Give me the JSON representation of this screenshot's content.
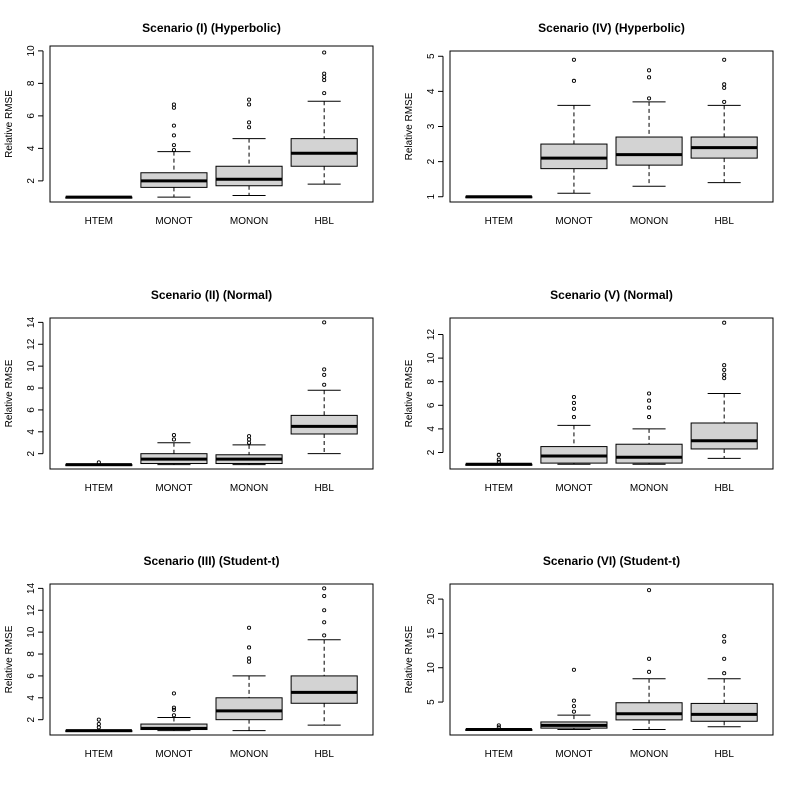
{
  "chart_data": [
    {
      "type": "boxplot",
      "title": "Scenario (I) (Hyperbolic)",
      "ylabel": "Relative RMSE",
      "categories": [
        "HTEM",
        "MONOT",
        "MONON",
        "HBL"
      ],
      "ylim": [
        0.7,
        10.3
      ],
      "yticks": [
        2,
        4,
        6,
        8,
        10
      ],
      "boxes": [
        {
          "min": 1.0,
          "q1": 1.0,
          "median": 1.0,
          "q3": 1.0,
          "max": 1.0,
          "outliers": []
        },
        {
          "min": 1.0,
          "q1": 1.6,
          "median": 2.0,
          "q3": 2.5,
          "max": 3.8,
          "outliers": [
            3.9,
            4.2,
            4.8,
            5.4,
            6.5,
            6.7
          ]
        },
        {
          "min": 1.1,
          "q1": 1.7,
          "median": 2.1,
          "q3": 2.9,
          "max": 4.6,
          "outliers": [
            5.3,
            5.6,
            6.7,
            7.0
          ]
        },
        {
          "min": 1.8,
          "q1": 2.9,
          "median": 3.7,
          "q3": 4.6,
          "max": 6.9,
          "outliers": [
            7.4,
            8.2,
            8.4,
            8.6,
            9.9
          ]
        }
      ]
    },
    {
      "type": "boxplot",
      "title": "Scenario (IV) (Hyperbolic)",
      "ylabel": "Relative RMSE",
      "categories": [
        "HTEM",
        "MONOT",
        "MONON",
        "HBL"
      ],
      "ylim": [
        0.85,
        5.15
      ],
      "yticks": [
        1,
        2,
        3,
        4,
        5
      ],
      "boxes": [
        {
          "min": 1.0,
          "q1": 1.0,
          "median": 1.0,
          "q3": 1.0,
          "max": 1.0,
          "outliers": []
        },
        {
          "min": 1.1,
          "q1": 1.8,
          "median": 2.1,
          "q3": 2.5,
          "max": 3.6,
          "outliers": [
            4.3,
            4.9
          ]
        },
        {
          "min": 1.3,
          "q1": 1.9,
          "median": 2.2,
          "q3": 2.7,
          "max": 3.7,
          "outliers": [
            3.8,
            4.4,
            4.6
          ]
        },
        {
          "min": 1.4,
          "q1": 2.1,
          "median": 2.4,
          "q3": 2.7,
          "max": 3.6,
          "outliers": [
            3.7,
            4.1,
            4.2,
            4.9
          ]
        }
      ]
    },
    {
      "type": "boxplot",
      "title": "Scenario (II) (Normal)",
      "ylabel": "Relative RMSE",
      "categories": [
        "HTEM",
        "MONOT",
        "MONON",
        "HBL"
      ],
      "ylim": [
        0.6,
        14.4
      ],
      "yticks": [
        2,
        4,
        6,
        8,
        10,
        12,
        14
      ],
      "boxes": [
        {
          "min": 1.0,
          "q1": 1.0,
          "median": 1.0,
          "q3": 1.0,
          "max": 1.0,
          "outliers": [
            1.2
          ]
        },
        {
          "min": 1.0,
          "q1": 1.1,
          "median": 1.5,
          "q3": 2.0,
          "max": 3.0,
          "outliers": [
            3.3,
            3.7
          ]
        },
        {
          "min": 1.0,
          "q1": 1.1,
          "median": 1.5,
          "q3": 1.9,
          "max": 2.8,
          "outliers": [
            3.0,
            3.3,
            3.6
          ]
        },
        {
          "min": 2.0,
          "q1": 3.8,
          "median": 4.5,
          "q3": 5.5,
          "max": 7.8,
          "outliers": [
            8.3,
            9.2,
            9.7,
            14.0
          ]
        }
      ]
    },
    {
      "type": "boxplot",
      "title": "Scenario (V) (Normal)",
      "ylabel": "Relative RMSE",
      "categories": [
        "HTEM",
        "MONOT",
        "MONON",
        "HBL"
      ],
      "ylim": [
        0.6,
        13.4
      ],
      "yticks": [
        2,
        4,
        6,
        8,
        10,
        12
      ],
      "boxes": [
        {
          "min": 1.0,
          "q1": 1.0,
          "median": 1.0,
          "q3": 1.0,
          "max": 1.0,
          "outliers": [
            1.2,
            1.4,
            1.8
          ]
        },
        {
          "min": 1.0,
          "q1": 1.1,
          "median": 1.7,
          "q3": 2.5,
          "max": 4.3,
          "outliers": [
            5.0,
            5.7,
            6.2,
            6.7
          ]
        },
        {
          "min": 1.0,
          "q1": 1.1,
          "median": 1.6,
          "q3": 2.7,
          "max": 4.0,
          "outliers": [
            5.0,
            5.8,
            6.4,
            7.0
          ]
        },
        {
          "min": 1.5,
          "q1": 2.3,
          "median": 3.0,
          "q3": 4.5,
          "max": 7.0,
          "outliers": [
            8.3,
            8.6,
            9.0,
            9.4,
            13.0
          ]
        }
      ]
    },
    {
      "type": "boxplot",
      "title": "Scenario (III) (Student-t)",
      "ylabel": "Relative RMSE",
      "categories": [
        "HTEM",
        "MONOT",
        "MONON",
        "HBL"
      ],
      "ylim": [
        0.6,
        14.4
      ],
      "yticks": [
        2,
        4,
        6,
        8,
        10,
        12,
        14
      ],
      "boxes": [
        {
          "min": 1.0,
          "q1": 1.0,
          "median": 1.0,
          "q3": 1.0,
          "max": 1.0,
          "outliers": [
            1.3,
            1.6,
            2.0
          ]
        },
        {
          "min": 1.0,
          "q1": 1.1,
          "median": 1.2,
          "q3": 1.6,
          "max": 2.2,
          "outliers": [
            2.4,
            2.9,
            3.1,
            4.4
          ]
        },
        {
          "min": 1.0,
          "q1": 2.0,
          "median": 2.8,
          "q3": 4.0,
          "max": 6.0,
          "outliers": [
            7.3,
            7.6,
            8.6,
            10.4
          ]
        },
        {
          "min": 1.5,
          "q1": 3.5,
          "median": 4.5,
          "q3": 6.0,
          "max": 9.3,
          "outliers": [
            9.7,
            10.9,
            12.0,
            13.3,
            14.0
          ]
        }
      ]
    },
    {
      "type": "boxplot",
      "title": "Scenario (VI) (Student-t)",
      "ylabel": "Relative RMSE",
      "categories": [
        "HTEM",
        "MONOT",
        "MONON",
        "HBL"
      ],
      "ylim": [
        0.2,
        22.2
      ],
      "yticks": [
        5,
        10,
        15,
        20
      ],
      "boxes": [
        {
          "min": 1.0,
          "q1": 1.0,
          "median": 1.0,
          "q3": 1.0,
          "max": 1.0,
          "outliers": [
            1.3,
            1.6
          ]
        },
        {
          "min": 1.0,
          "q1": 1.2,
          "median": 1.6,
          "q3": 2.1,
          "max": 3.1,
          "outliers": [
            3.6,
            4.4,
            5.2,
            9.7
          ]
        },
        {
          "min": 1.0,
          "q1": 2.4,
          "median": 3.3,
          "q3": 4.9,
          "max": 8.4,
          "outliers": [
            9.4,
            11.3,
            21.3
          ]
        },
        {
          "min": 1.4,
          "q1": 2.2,
          "median": 3.2,
          "q3": 4.8,
          "max": 8.4,
          "outliers": [
            9.2,
            11.3,
            13.8,
            14.6
          ]
        }
      ]
    }
  ]
}
